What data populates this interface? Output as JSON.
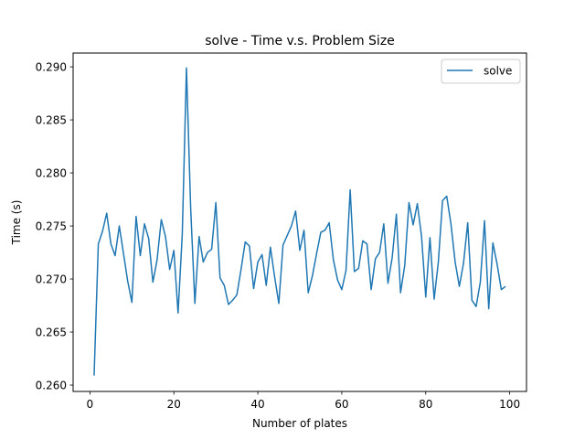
{
  "chart_data": {
    "type": "line",
    "title": "solve - Time v.s. Problem Size",
    "xlabel": "Number of plates",
    "ylabel": "Time (s)",
    "xlim": [
      -4,
      104
    ],
    "ylim": [
      0.2594,
      0.2913
    ],
    "xticks": [
      0,
      20,
      40,
      60,
      80,
      100
    ],
    "xtick_labels": [
      "0",
      "20",
      "40",
      "60",
      "80",
      "100"
    ],
    "yticks": [
      0.26,
      0.265,
      0.27,
      0.275,
      0.28,
      0.285,
      0.29
    ],
    "ytick_labels": [
      "0.260",
      "0.265",
      "0.270",
      "0.275",
      "0.280",
      "0.285",
      "0.290"
    ],
    "grid": false,
    "legend_position": "upper right",
    "series": [
      {
        "name": "solve",
        "color": "#1f77b4",
        "x": [
          1,
          2,
          3,
          4,
          5,
          6,
          7,
          8,
          9,
          10,
          11,
          12,
          13,
          14,
          15,
          16,
          17,
          18,
          19,
          20,
          21,
          22,
          23,
          24,
          25,
          26,
          27,
          28,
          29,
          30,
          31,
          32,
          33,
          34,
          35,
          36,
          37,
          38,
          39,
          40,
          41,
          42,
          43,
          44,
          45,
          46,
          47,
          48,
          49,
          50,
          51,
          52,
          53,
          54,
          55,
          56,
          57,
          58,
          59,
          60,
          61,
          62,
          63,
          64,
          65,
          66,
          67,
          68,
          69,
          70,
          71,
          72,
          73,
          74,
          75,
          76,
          77,
          78,
          79,
          80,
          81,
          82,
          83,
          84,
          85,
          86,
          87,
          88,
          89,
          90,
          91,
          92,
          93,
          94,
          95,
          96,
          97,
          98,
          99
        ],
        "y": [
          0.2609,
          0.2733,
          0.2745,
          0.2762,
          0.2733,
          0.2722,
          0.275,
          0.2724,
          0.2698,
          0.2678,
          0.2759,
          0.2722,
          0.2752,
          0.2738,
          0.2697,
          0.2718,
          0.2756,
          0.274,
          0.2709,
          0.2727,
          0.2668,
          0.2742,
          0.2899,
          0.2767,
          0.2677,
          0.274,
          0.2716,
          0.2725,
          0.2728,
          0.2772,
          0.2701,
          0.2694,
          0.2676,
          0.268,
          0.2685,
          0.2709,
          0.2735,
          0.2731,
          0.2691,
          0.2716,
          0.2723,
          0.2694,
          0.273,
          0.2702,
          0.2677,
          0.2732,
          0.2741,
          0.275,
          0.2764,
          0.2727,
          0.2746,
          0.2687,
          0.2703,
          0.2724,
          0.2744,
          0.2746,
          0.2753,
          0.2718,
          0.2699,
          0.269,
          0.2708,
          0.2784,
          0.2707,
          0.271,
          0.2736,
          0.2733,
          0.269,
          0.2719,
          0.2725,
          0.2752,
          0.2696,
          0.272,
          0.2761,
          0.2687,
          0.2713,
          0.2772,
          0.2751,
          0.2771,
          0.274,
          0.2683,
          0.2739,
          0.2681,
          0.2716,
          0.2774,
          0.2778,
          0.2752,
          0.2716,
          0.2693,
          0.2715,
          0.2753,
          0.268,
          0.2674,
          0.2697,
          0.2755,
          0.2672,
          0.2734,
          0.2714,
          0.269,
          0.2693
        ]
      }
    ]
  }
}
